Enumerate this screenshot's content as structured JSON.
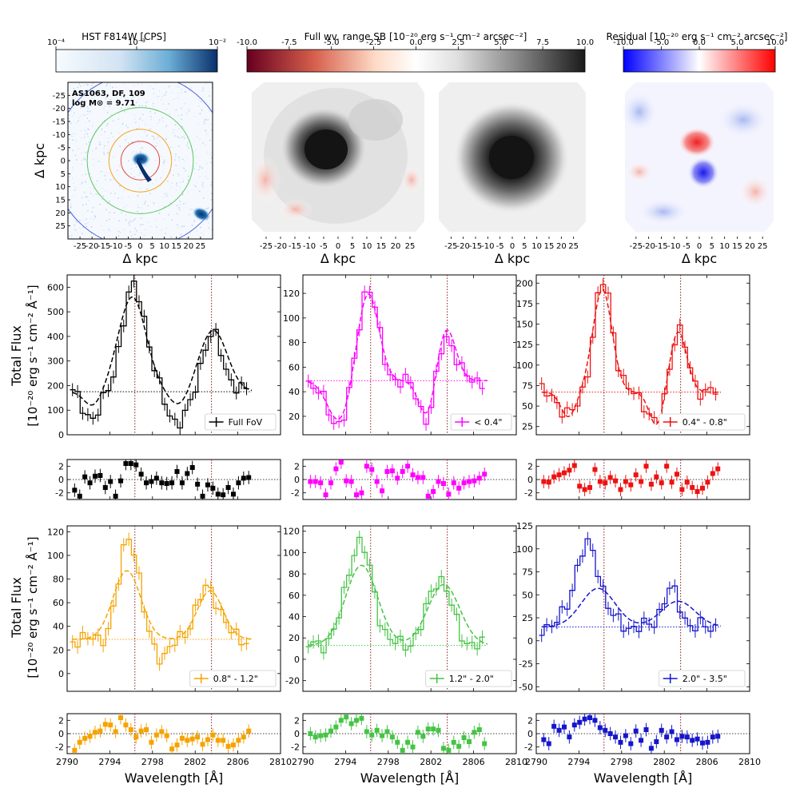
{
  "colorbars": [
    {
      "id": "hst",
      "title": "HST F814W [CPS]",
      "cmap": "blues",
      "ticks": [
        {
          "v": 0,
          "t": "10⁻⁴"
        },
        {
          "v": 0.5,
          "t": "10⁻³"
        },
        {
          "v": 1,
          "t": "10⁻²"
        }
      ]
    },
    {
      "id": "sb",
      "title": "Full wv. range SB [10⁻²⁰ erg s⁻¹ cm⁻² arcsec⁻²]",
      "cmap": "rdgy",
      "ticks": [
        {
          "v": 0,
          "t": "-10.0"
        },
        {
          "v": 0.125,
          "t": "-7.5"
        },
        {
          "v": 0.25,
          "t": "-5.0"
        },
        {
          "v": 0.375,
          "t": "-2.5"
        },
        {
          "v": 0.5,
          "t": "0.0"
        },
        {
          "v": 0.625,
          "t": "2.5"
        },
        {
          "v": 0.75,
          "t": "5.0"
        },
        {
          "v": 0.875,
          "t": "7.5"
        },
        {
          "v": 1,
          "t": "10.0"
        }
      ]
    },
    {
      "id": "res",
      "title": "Residual [10⁻²⁰ erg s⁻¹ cm⁻² arcsec⁻²]",
      "cmap": "bwr",
      "ticks": [
        {
          "v": 0,
          "t": "-10.0"
        },
        {
          "v": 0.25,
          "t": "-5.0"
        },
        {
          "v": 0.5,
          "t": "0.0"
        },
        {
          "v": 0.75,
          "t": "5.0"
        },
        {
          "v": 1,
          "t": "10.0"
        }
      ]
    }
  ],
  "image_panels": {
    "annotation": [
      "AS1063, DF, 109",
      "log M⊙ = 9.71"
    ],
    "xlabel": "Δ kpc",
    "ylabel": "Δ kpc",
    "ticks": [
      -25,
      -20,
      -15,
      -10,
      -5,
      0,
      5,
      10,
      15,
      20,
      25
    ],
    "xticklabels": [
      "-25",
      "-20",
      "-15",
      "-10",
      "-5",
      "0",
      "5",
      "10",
      "15",
      "20",
      "25"
    ],
    "yticklabels": [
      "25",
      "20",
      "15",
      "10",
      "5",
      "0",
      "-5",
      "-10",
      "-15",
      "-20",
      "-25"
    ],
    "range": [
      -30,
      30
    ],
    "aperture_radii_kpc": [
      {
        "r": 8,
        "color": "#e8413c"
      },
      {
        "r": 13,
        "color": "#f7a11a"
      },
      {
        "r": 22,
        "color": "#5ac85a"
      },
      {
        "r": 36,
        "color": "#4f5fd8"
      }
    ]
  },
  "chart_data": {
    "type": "line",
    "xlabel": "Wavelength [Å]",
    "ylabel": [
      "Total Flux",
      "[10⁻²⁰ erg s⁻¹ cm⁻² Å⁻¹]"
    ],
    "xlim": [
      2790,
      2810
    ],
    "xticks": [
      2790,
      2794,
      2798,
      2802,
      2806,
      2810
    ],
    "line_markers": [
      2796.35,
      2803.53
    ],
    "residual_ylim": [
      -3,
      3
    ],
    "residual_yticks": [
      -2,
      0,
      2
    ],
    "panels": [
      {
        "legend": "Full FoV",
        "color": "#000000",
        "ylim": [
          0,
          650
        ],
        "yticks": [
          0,
          100,
          200,
          300,
          400,
          500,
          600
        ],
        "continuum": 175,
        "peaks": [
          {
            "center": 2796.3,
            "amp": 430,
            "width": 1.1
          },
          {
            "center": 2803.6,
            "amp": 230,
            "width": 1.0
          }
        ],
        "absorption": [
          {
            "center": 2792.4,
            "amp": -110,
            "width": 0.8
          },
          {
            "center": 2800.5,
            "amp": -130,
            "width": 1.0
          }
        ],
        "model": {
          "continuum": 175,
          "peaks": [
            {
              "center": 2796.1,
              "amp": 385,
              "width": 1.3
            },
            {
              "center": 2803.7,
              "amp": 250,
              "width": 1.3
            }
          ],
          "absorption": [
            {
              "center": 2792.4,
              "amp": -60,
              "width": 0.8
            },
            {
              "center": 2800.5,
              "amp": -60,
              "width": 0.9
            }
          ]
        },
        "resid_points": [
          -1.6,
          -2.5,
          0.4,
          -0.5,
          0.5,
          0.6,
          -1.2,
          -0.3,
          -2.5,
          -0.2,
          2.4,
          2.4,
          2.2,
          0.8,
          -0.5,
          -0.3,
          0.2,
          -0.5,
          -0.6,
          -0.5,
          1.2,
          -0.5,
          0.9,
          1.8,
          -0.7,
          -2.5,
          -0.8,
          -1.3,
          -2.2,
          -2.3,
          -1.2,
          -2.2,
          -0.5,
          0.2,
          0.3
        ]
      },
      {
        "legend": "< 0.4\"",
        "color": "#ff00ff",
        "ylim": [
          5,
          135
        ],
        "yticks": [
          20,
          40,
          60,
          80,
          100,
          120
        ],
        "continuum": 49,
        "peaks": [
          {
            "center": 2796.1,
            "amp": 78,
            "width": 0.9
          },
          {
            "center": 2803.3,
            "amp": 40,
            "width": 0.9
          }
        ],
        "absorption": [
          {
            "center": 2793.3,
            "amp": -35,
            "width": 1.1
          },
          {
            "center": 2801.8,
            "amp": -38,
            "width": 0.8
          }
        ],
        "model": {
          "continuum": 49,
          "peaks": [
            {
              "center": 2796.1,
              "amp": 72,
              "width": 1.0
            },
            {
              "center": 2803.4,
              "amp": 44,
              "width": 0.9
            }
          ],
          "absorption": [
            {
              "center": 2793.4,
              "amp": -33,
              "width": 1.1
            },
            {
              "center": 2801.7,
              "amp": -32,
              "width": 0.8
            }
          ]
        },
        "resid_points": [
          -0.3,
          -0.3,
          -0.5,
          -2.3,
          -0.5,
          1.6,
          2.6,
          -0.2,
          -0.3,
          -2.3,
          -2.0,
          2.0,
          1.5,
          -0.3,
          -1.7,
          1.2,
          1.3,
          0.2,
          1.2,
          2.0,
          0.7,
          0.3,
          0.3,
          -2.5,
          -1.8,
          -0.3,
          -0.6,
          -2.2,
          -0.5,
          -1.3,
          -0.5,
          -0.3,
          -0.2,
          0.2,
          0.8
        ]
      },
      {
        "legend": "0.4\" - 0.8\"",
        "color": "#ee1111",
        "ylim": [
          15,
          210
        ],
        "yticks": [
          25,
          50,
          75,
          100,
          125,
          150,
          175,
          200
        ],
        "continuum": 67,
        "peaks": [
          {
            "center": 2796.3,
            "amp": 135,
            "width": 0.85
          },
          {
            "center": 2803.3,
            "amp": 76,
            "width": 0.8
          }
        ],
        "absorption": [
          {
            "center": 2793.0,
            "amp": -28,
            "width": 0.8
          },
          {
            "center": 2801.3,
            "amp": -42,
            "width": 0.8
          }
        ],
        "model": {
          "continuum": 67,
          "peaks": [
            {
              "center": 2796.2,
              "amp": 125,
              "width": 0.9
            },
            {
              "center": 2803.3,
              "amp": 74,
              "width": 0.8
            }
          ],
          "absorption": [
            {
              "center": 2793.0,
              "amp": -30,
              "width": 0.7
            },
            {
              "center": 2801.3,
              "amp": -42,
              "width": 0.7
            }
          ]
        },
        "resid_points": [
          -0.3,
          -0.4,
          0.4,
          0.7,
          1.0,
          1.4,
          2.1,
          -1.0,
          -1.5,
          -1.2,
          1.5,
          -0.3,
          -0.5,
          0.3,
          -0.2,
          -1.5,
          -0.3,
          -0.8,
          0.7,
          -0.3,
          2.0,
          -0.7,
          0.4,
          -0.5,
          2.0,
          -0.4,
          0.8,
          -1.5,
          -0.4,
          -1.2,
          -1.8,
          -1.3,
          -0.4,
          0.9,
          1.6
        ]
      },
      {
        "legend": "0.8\" - 1.2\"",
        "color": "#f5a300",
        "ylim": [
          -15,
          125
        ],
        "yticks": [
          0,
          20,
          40,
          60,
          80,
          100,
          120
        ],
        "continuum": 29,
        "peaks": [
          {
            "center": 2795.8,
            "amp": 88,
            "width": 0.9
          },
          {
            "center": 2803.2,
            "amp": 43,
            "width": 1.1
          }
        ],
        "absorption": [
          {
            "center": 2798.9,
            "amp": -14,
            "width": 0.8
          }
        ],
        "model": {
          "continuum": 29,
          "peaks": [
            {
              "center": 2795.6,
              "amp": 58,
              "width": 1.3
            },
            {
              "center": 2803.4,
              "amp": 41,
              "width": 1.2
            }
          ],
          "absorption": []
        },
        "resid_points": [
          -2.5,
          -1.3,
          -0.7,
          -0.4,
          0.2,
          0.4,
          1.4,
          1.3,
          0.3,
          2.4,
          1.3,
          0.6,
          -0.5,
          0.4,
          0.6,
          -1.3,
          -0.2,
          0.3,
          -0.3,
          -2.3,
          -1.7,
          -0.7,
          -1.0,
          -0.8,
          -0.5,
          -1.6,
          -0.9,
          -0.2,
          -1.0,
          -1.0,
          -1.9,
          -1.7,
          -1.0,
          -0.5,
          0.4
        ]
      },
      {
        "legend": "1.2\" - 2.0\"",
        "color": "#44c444",
        "ylim": [
          -30,
          125
        ],
        "yticks": [
          -20,
          0,
          20,
          40,
          60,
          80,
          100,
          120
        ],
        "continuum": 13,
        "peaks": [
          {
            "center": 2795.3,
            "amp": 97,
            "width": 1.2
          },
          {
            "center": 2802.8,
            "amp": 63,
            "width": 1.1
          }
        ],
        "absorption": [],
        "model": {
          "continuum": 13,
          "peaks": [
            {
              "center": 2795.5,
              "amp": 75,
              "width": 1.5
            },
            {
              "center": 2803.2,
              "amp": 57,
              "width": 1.5
            }
          ],
          "absorption": []
        },
        "resid_points": [
          0.0,
          -0.5,
          -0.3,
          -0.2,
          0.4,
          1.0,
          2.0,
          2.5,
          1.5,
          2.0,
          2.3,
          0.3,
          -0.2,
          0.5,
          -0.3,
          0.3,
          -0.5,
          -1.3,
          -2.5,
          -1.3,
          -2.0,
          0.2,
          -0.4,
          0.7,
          0.7,
          0.5,
          -2.2,
          -2.5,
          -1.3,
          -1.9,
          -0.6,
          -1.2,
          0.2,
          0.6,
          -1.5
        ]
      },
      {
        "legend": "2.0\" - 3.5\"",
        "color": "#1515cc",
        "ylim": [
          -55,
          125
        ],
        "yticks": [
          -50,
          -25,
          0,
          25,
          50,
          75,
          100,
          125
        ],
        "continuum": 15,
        "peaks": [
          {
            "center": 2794.8,
            "amp": 88,
            "width": 1.2
          },
          {
            "center": 2802.6,
            "amp": 40,
            "width": 0.8
          }
        ],
        "absorption": [],
        "model": {
          "continuum": 15,
          "peaks": [
            {
              "center": 2795.8,
              "amp": 42,
              "width": 1.6
            },
            {
              "center": 2803.3,
              "amp": 28,
              "width": 1.6
            }
          ],
          "absorption": []
        },
        "resid_points": [
          -0.9,
          -1.5,
          1.1,
          0.5,
          1.0,
          -0.5,
          1.3,
          1.7,
          2.2,
          2.4,
          2.0,
          0.9,
          0.5,
          0.0,
          -0.5,
          -1.3,
          -0.3,
          -1.5,
          0.4,
          -1.0,
          0.6,
          -2.2,
          -1.2,
          0.5,
          -0.5,
          0.3,
          -0.9,
          -0.4,
          -0.5,
          -1.0,
          -0.8,
          -1.4,
          -1.3,
          -0.5,
          -0.4
        ]
      }
    ]
  }
}
